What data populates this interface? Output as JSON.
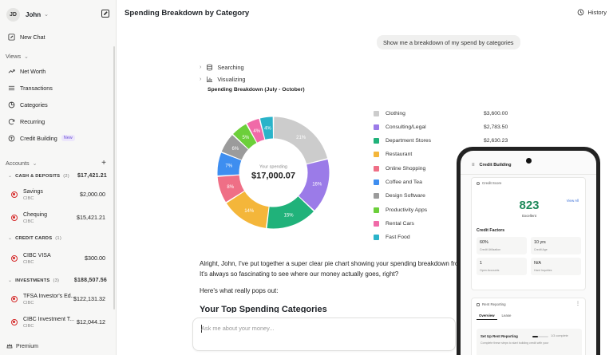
{
  "user": {
    "initials": "JD",
    "name": "John"
  },
  "sidebar": {
    "new_chat": "New Chat",
    "views_label": "Views",
    "views": [
      {
        "label": "Net Worth",
        "icon": "trend-icon"
      },
      {
        "label": "Transactions",
        "icon": "list-icon"
      },
      {
        "label": "Categories",
        "icon": "pie-icon"
      },
      {
        "label": "Recurring",
        "icon": "refresh-icon"
      },
      {
        "label": "Credit Building",
        "icon": "card-icon",
        "badge": "New"
      }
    ],
    "accounts_label": "Accounts",
    "groups": [
      {
        "label": "CASH & DEPOSITS",
        "count": "(2)",
        "amount": "$17,421.21",
        "accounts": [
          {
            "name": "Savings",
            "bank": "CIBC",
            "amount": "$2,000.00"
          },
          {
            "name": "Chequing",
            "bank": "CIBC",
            "amount": "$15,421.21"
          }
        ]
      },
      {
        "label": "CREDIT CARDS",
        "count": "(1)",
        "amount": "",
        "accounts": [
          {
            "name": "CIBC VISA",
            "bank": "CIBC",
            "amount": "$300.00"
          }
        ]
      },
      {
        "label": "INVESTMENTS",
        "count": "(3)",
        "amount": "$188,507.56",
        "accounts": [
          {
            "name": "TFSA Investor's Ed...",
            "bank": "CIBC",
            "amount": "$122,131.32"
          },
          {
            "name": "CIBC Investment T...",
            "bank": "CIBC",
            "amount": "$12,044.12"
          }
        ]
      }
    ],
    "premium": "Premium"
  },
  "header": {
    "title": "Spending Breakdown by Category",
    "history": "History"
  },
  "chat": {
    "user_message": "Show me a breakdown of my spend by categories",
    "steps": [
      "Searching",
      "Visualizing"
    ],
    "paragraph_1": "Alright, John, I've put together a super clear pie chart showing your spending breakdown from",
    "paragraph_2": "It's always so fascinating to see where our money actually goes, right?",
    "paragraph_3": "Here's what really pops out:",
    "heading": "Your Top Spending Categories",
    "input_placeholder": "Ask me about your money..."
  },
  "chart_data": {
    "type": "pie",
    "title": "Spending Breakdown (July - October)",
    "center_label": "Your spending",
    "center_value": "$17,000.07",
    "slices": [
      {
        "name": "Clothing",
        "value": "$3,600.00",
        "pct": 21,
        "label": "21%",
        "color": "#cccccc"
      },
      {
        "name": "Consulting/Legal",
        "value": "$2,783.50",
        "pct": 16,
        "label": "16%",
        "color": "#9b7be8"
      },
      {
        "name": "Department Stores",
        "value": "$2,630.23",
        "pct": 15,
        "label": "15%",
        "color": "#20b27a"
      },
      {
        "name": "Restaurant",
        "value": "",
        "pct": 14,
        "label": "14%",
        "color": "#f4b63a"
      },
      {
        "name": "Online Shopping",
        "value": "",
        "pct": 8,
        "label": "8%",
        "color": "#ef6f86"
      },
      {
        "name": "Coffee and Tea",
        "value": "",
        "pct": 7,
        "label": "7%",
        "color": "#3e8ef0"
      },
      {
        "name": "Design Software",
        "value": "",
        "pct": 6,
        "label": "6%",
        "color": "#9b9b9b"
      },
      {
        "name": "Productivity Apps",
        "value": "",
        "pct": 5,
        "label": "5%",
        "color": "#6ccf3a"
      },
      {
        "name": "Rental Cars",
        "value": "",
        "pct": 4,
        "label": "4%",
        "color": "#f06aa8"
      },
      {
        "name": "Fast Food",
        "value": "",
        "pct": 4,
        "label": "4%",
        "color": "#2ab3c9"
      }
    ]
  },
  "phone": {
    "title": "Credit Building",
    "score_label": "Credit Score",
    "score": "823",
    "rating": "Excellent",
    "view_all": "View All",
    "factors_title": "Credit Factors",
    "factors": [
      {
        "value": "60%",
        "label": "Credit Utilization"
      },
      {
        "value": "10 yrs",
        "label": "Credit Age"
      },
      {
        "value": "1",
        "label": "Open Accounts"
      },
      {
        "value": "N/A",
        "label": "Hard Inquiries"
      }
    ],
    "rent_label": "Rent Reporting",
    "rent_more": "⋮",
    "tabs": [
      "Overview",
      "Lease"
    ],
    "setup_title": "Set Up Rent Reporting",
    "setup_progress": "1/3 complete",
    "setup_fraction": 0.33,
    "setup_desc": "Complete these steps to start building credit with your"
  }
}
